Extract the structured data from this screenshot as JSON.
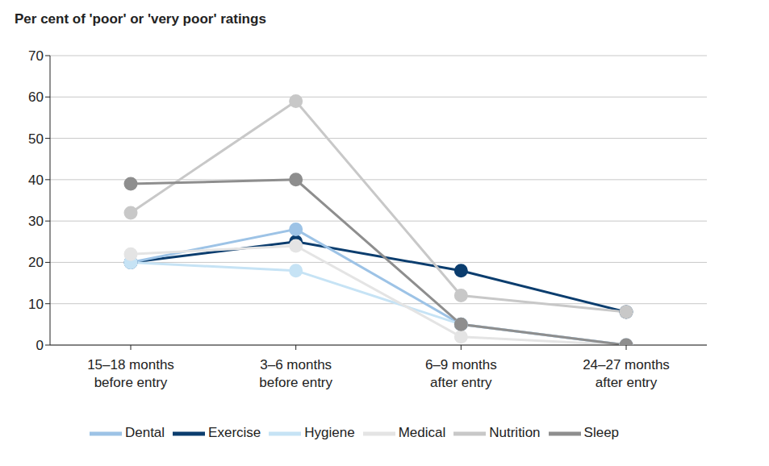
{
  "chart_data": {
    "type": "line",
    "title": "Per cent of 'poor' or 'very poor' ratings",
    "categories": [
      "15–18 months before entry",
      "3–6 months before entry",
      "6–9 months after entry",
      "24–27 months after entry"
    ],
    "series": [
      {
        "name": "Exercise",
        "color": "#0b3d6e",
        "values": [
          20,
          25,
          18,
          8
        ]
      },
      {
        "name": "Dental",
        "color": "#9dc3e6",
        "values": [
          20,
          28,
          5,
          0
        ]
      },
      {
        "name": "Hygiene",
        "color": "#c6e3f5",
        "values": [
          20,
          18,
          5,
          0
        ]
      },
      {
        "name": "Medical",
        "color": "#e4e4e4",
        "values": [
          22,
          24,
          2,
          0
        ]
      },
      {
        "name": "Nutrition",
        "color": "#c8c8c8",
        "values": [
          32,
          59,
          12,
          8
        ]
      },
      {
        "name": "Sleep",
        "color": "#8e8e8e",
        "values": [
          39,
          40,
          5,
          0
        ]
      }
    ],
    "ylim": [
      0,
      70
    ],
    "yticks": [
      0,
      10,
      20,
      30,
      40,
      50,
      60,
      70
    ],
    "grid": true,
    "legend": "bottom",
    "marker": "circle"
  }
}
